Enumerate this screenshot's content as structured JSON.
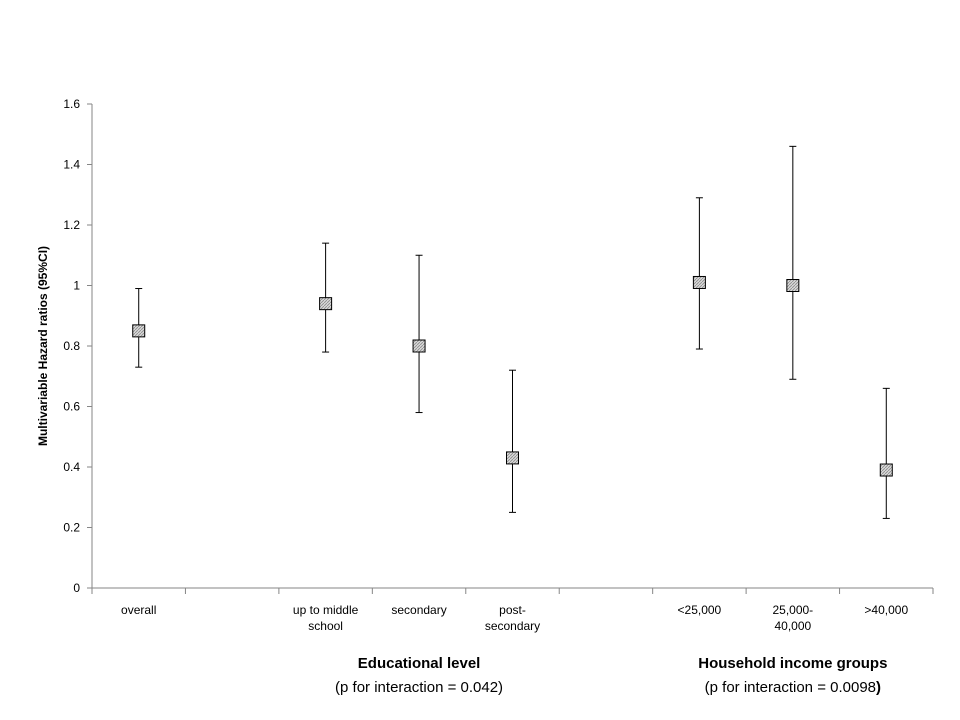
{
  "chart_data": {
    "type": "scatter",
    "ylabel": "Multivariable Hazard ratios (95%CI)",
    "ylim": [
      0,
      1.6
    ],
    "yticks": [
      "0",
      "0.2",
      "0.4",
      "0.6",
      "0.8",
      "1",
      "1.2",
      "1.4",
      "1.6"
    ],
    "grid": false,
    "categories": [
      {
        "lines": [
          "overall"
        ]
      },
      {
        "lines": [
          ""
        ]
      },
      {
        "lines": [
          "up to middle",
          "school"
        ]
      },
      {
        "lines": [
          "secondary"
        ]
      },
      {
        "lines": [
          "post-",
          "secondary"
        ]
      },
      {
        "lines": [
          ""
        ]
      },
      {
        "lines": [
          "<25,000"
        ]
      },
      {
        "lines": [
          "25,000-",
          "40,000"
        ]
      },
      {
        "lines": [
          ">40,000"
        ]
      }
    ],
    "points": [
      {
        "category": 0,
        "hr": 0.85,
        "lower": 0.73,
        "upper": 0.99
      },
      {
        "category": 2,
        "hr": 0.94,
        "lower": 0.78,
        "upper": 1.14
      },
      {
        "category": 3,
        "hr": 0.8,
        "lower": 0.58,
        "upper": 1.1
      },
      {
        "category": 4,
        "hr": 0.43,
        "lower": 0.25,
        "upper": 0.72
      },
      {
        "category": 6,
        "hr": 1.01,
        "lower": 0.79,
        "upper": 1.29
      },
      {
        "category": 7,
        "hr": 1.0,
        "lower": 0.69,
        "upper": 1.46
      },
      {
        "category": 8,
        "hr": 0.39,
        "lower": 0.23,
        "upper": 0.66
      }
    ],
    "groups": [
      {
        "title": "Educational level",
        "subtitle_main": "(p for interaction = 0.042)",
        "subtitle_tail": "",
        "from_category": 2,
        "to_category": 4
      },
      {
        "title": "Household income groups",
        "subtitle_main": "(p for interaction = 0.0098",
        "subtitle_tail": ")",
        "from_category": 6,
        "to_category": 8
      }
    ],
    "marker_color": "#d4d4d4"
  }
}
